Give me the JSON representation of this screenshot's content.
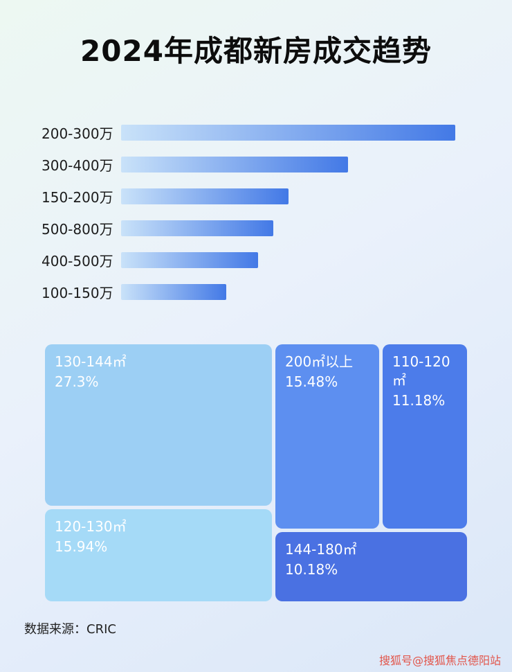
{
  "title": "2024年成都新房成交趋势",
  "footer": {
    "text": "数据来源：CRIC"
  },
  "watermark": {
    "text": "搜狐号@搜狐焦点德阳站",
    "color": "#e2554a"
  },
  "colors": {
    "bar_gradient_from": "#c9e2f9",
    "bar_gradient_to": "#4379e6",
    "background_top": "#edf8f2",
    "background_bottom": "#dbe7f8"
  },
  "chart_data": [
    {
      "type": "bar",
      "orientation": "horizontal",
      "title": "2024年成都新房成交趋势",
      "categories": [
        "200-300万",
        "300-400万",
        "150-200万",
        "500-800万",
        "400-500万",
        "100-150万"
      ],
      "values_pct_of_max": [
        100,
        68,
        50,
        45.5,
        41,
        31.5
      ],
      "value_labels_shown": false,
      "legend": "none",
      "grid": false
    },
    {
      "type": "treemap",
      "items": [
        {
          "label": "130-144㎡",
          "display_value": "27.3%",
          "value": 27.3,
          "color": "#9ccff4"
        },
        {
          "label": "120-130㎡",
          "display_value": "15.94%",
          "value": 15.94,
          "color": "#a5daf7"
        },
        {
          "label": "200㎡以上",
          "display_value": "15.48%",
          "value": 15.48,
          "color": "#5d8ff0"
        },
        {
          "label": "110-120㎡",
          "display_value": "11.18%",
          "value": 11.18,
          "color": "#4c7cea"
        },
        {
          "label": "144-180㎡",
          "display_value": "10.18%",
          "value": 10.18,
          "color": "#4a71e2"
        }
      ]
    }
  ]
}
